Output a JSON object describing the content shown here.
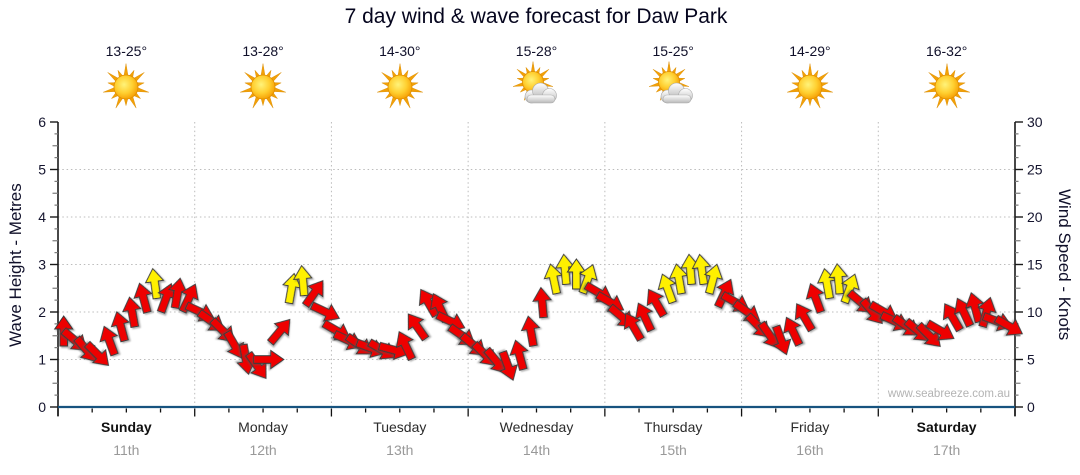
{
  "title": "7 day wind & wave forecast for Daw Park",
  "watermark": "www.seabreeze.com.au",
  "axes": {
    "left_label": "Wave Height - Metres",
    "right_label": "Wind Speed - Knots",
    "left_ticks": [
      0,
      1,
      2,
      3,
      4,
      5,
      6
    ],
    "right_ticks": [
      0,
      5,
      10,
      15,
      20,
      25,
      30
    ]
  },
  "days": [
    {
      "name": "Sunday",
      "date": "11th",
      "temp": "13-25°",
      "icon": "sunny",
      "weekend": true
    },
    {
      "name": "Monday",
      "date": "12th",
      "temp": "13-28°",
      "icon": "sunny",
      "weekend": false
    },
    {
      "name": "Tuesday",
      "date": "13th",
      "temp": "14-30°",
      "icon": "sunny",
      "weekend": false
    },
    {
      "name": "Wednesday",
      "date": "14th",
      "temp": "15-28°",
      "icon": "partly-cloudy",
      "weekend": false
    },
    {
      "name": "Thursday",
      "date": "15th",
      "temp": "15-25°",
      "icon": "partly-cloudy",
      "weekend": false
    },
    {
      "name": "Friday",
      "date": "16th",
      "temp": "14-29°",
      "icon": "sunny",
      "weekend": true
    },
    {
      "name": "Saturday",
      "date": "17th",
      "temp": "16-32°",
      "icon": "sunny",
      "weekend": true
    }
  ],
  "colors": {
    "arrow_red": "#ee0000",
    "arrow_yellow": "#fff000",
    "arrow_outline": "#3a3a3a",
    "bottom_axis": "#17537f",
    "grid": "#bcbcbc",
    "axis_dark": "#1a1a1a",
    "tick_minor": "#7a7a7a"
  },
  "chart_data": {
    "type": "wind-arrow-series",
    "title": "7 day wind & wave forecast for Daw Park",
    "ylabel_left": "Wave Height - Metres",
    "ylabel_right": "Wind Speed - Knots",
    "wave_axis_range": [
      0,
      6
    ],
    "wind_axis_range": [
      0,
      30
    ],
    "grid": "dotted",
    "x_categories": [
      "Sunday 11th",
      "Monday 12th",
      "Tuesday 13th",
      "Wednesday 14th",
      "Thursday 15th",
      "Friday 16th",
      "Saturday 17th"
    ],
    "steps_per_day": 12,
    "yellow_threshold_knots": 12.5,
    "wind_knots": [
      8,
      7,
      6,
      5.5,
      7,
      8.5,
      10,
      11.5,
      13,
      11.5,
      12,
      11.5,
      10,
      9,
      8,
      6.5,
      5,
      4.3,
      5,
      8,
      12.5,
      13.3,
      12,
      10,
      8,
      7,
      6.5,
      6.2,
      6,
      6,
      6.5,
      8.5,
      11,
      10.5,
      9,
      7.5,
      6.5,
      5.5,
      4.8,
      4.3,
      5.5,
      8,
      11,
      13.5,
      14.5,
      14,
      13.5,
      12,
      11,
      9.5,
      8.5,
      9.5,
      11,
      12.5,
      13.5,
      14.5,
      14.5,
      13.5,
      12,
      11,
      10,
      8.5,
      7.5,
      7,
      8,
      9.5,
      11.5,
      13,
      13.5,
      12.5,
      11,
      10,
      10,
      9,
      8.5,
      8,
      7.5,
      8,
      9.5,
      10,
      10.5,
      10,
      9,
      8.5
    ],
    "wind_dir_deg": [
      0,
      130,
      140,
      135,
      -20,
      -15,
      -10,
      -15,
      -8,
      20,
      10,
      25,
      115,
      125,
      135,
      150,
      170,
      145,
      90,
      40,
      10,
      -5,
      35,
      115,
      120,
      115,
      125,
      110,
      120,
      105,
      -25,
      -35,
      -30,
      -25,
      115,
      125,
      130,
      135,
      140,
      160,
      -15,
      -10,
      -5,
      -12,
      -5,
      0,
      20,
      120,
      120,
      130,
      -30,
      -25,
      -30,
      -20,
      -10,
      -5,
      -8,
      15,
      25,
      120,
      125,
      135,
      145,
      160,
      -25,
      -30,
      -20,
      -10,
      -5,
      20,
      130,
      140,
      120,
      115,
      125,
      130,
      135,
      120,
      -30,
      -25,
      -15,
      15,
      110,
      120
    ]
  }
}
